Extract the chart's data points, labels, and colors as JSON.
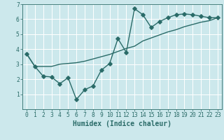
{
  "xlabel": "Humidex (Indice chaleur)",
  "bg_color": "#cce8ec",
  "grid_color": "#ffffff",
  "line_color": "#2a6b68",
  "xlim": [
    -0.5,
    23.5
  ],
  "ylim": [
    0,
    7
  ],
  "yticks": [
    1,
    2,
    3,
    4,
    5,
    6,
    7
  ],
  "xticks": [
    0,
    1,
    2,
    3,
    4,
    5,
    6,
    7,
    8,
    9,
    10,
    11,
    12,
    13,
    14,
    15,
    16,
    17,
    18,
    19,
    20,
    21,
    22,
    23
  ],
  "line1_x": [
    0,
    1,
    2,
    3,
    4,
    5,
    6,
    7,
    8,
    9,
    10,
    11,
    12,
    13,
    14,
    15,
    16,
    17,
    18,
    19,
    20,
    21,
    22,
    23
  ],
  "line1_y": [
    3.7,
    2.85,
    2.2,
    2.15,
    1.7,
    2.1,
    0.65,
    1.3,
    1.55,
    2.6,
    3.05,
    4.7,
    3.8,
    6.7,
    6.3,
    5.45,
    5.85,
    6.1,
    6.3,
    6.35,
    6.3,
    6.2,
    6.1,
    6.1
  ],
  "line2_x": [
    0,
    1,
    2,
    3,
    4,
    5,
    6,
    7,
    8,
    9,
    10,
    11,
    12,
    13,
    14,
    15,
    16,
    17,
    18,
    19,
    20,
    21,
    22,
    23
  ],
  "line2_y": [
    3.7,
    2.85,
    2.85,
    2.85,
    3.0,
    3.05,
    3.1,
    3.2,
    3.35,
    3.5,
    3.65,
    3.85,
    4.05,
    4.2,
    4.55,
    4.75,
    4.95,
    5.15,
    5.3,
    5.5,
    5.65,
    5.8,
    5.9,
    6.1
  ],
  "marker": "D",
  "markersize": 2.8,
  "linewidth": 1.0,
  "font_color": "#2a6b68",
  "tick_fontsize": 5.8,
  "label_fontsize": 7.0
}
